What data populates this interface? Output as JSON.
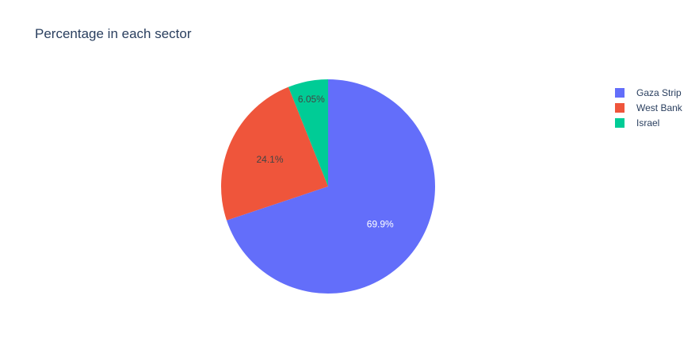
{
  "chart_data": {
    "type": "pie",
    "title": "Percentage in each sector",
    "labels": [
      "Gaza Strip",
      "West Bank",
      "Israel"
    ],
    "values": [
      69.9,
      24.1,
      6.05
    ],
    "text_labels": [
      "69.9%",
      "24.1%",
      "6.05%"
    ],
    "colors": [
      "#636efa",
      "#ef553b",
      "#00cc96"
    ],
    "label_colors": [
      "#ffffff",
      "#444444",
      "#444444"
    ],
    "direction": "clockwise",
    "legend_position": "top-right"
  }
}
